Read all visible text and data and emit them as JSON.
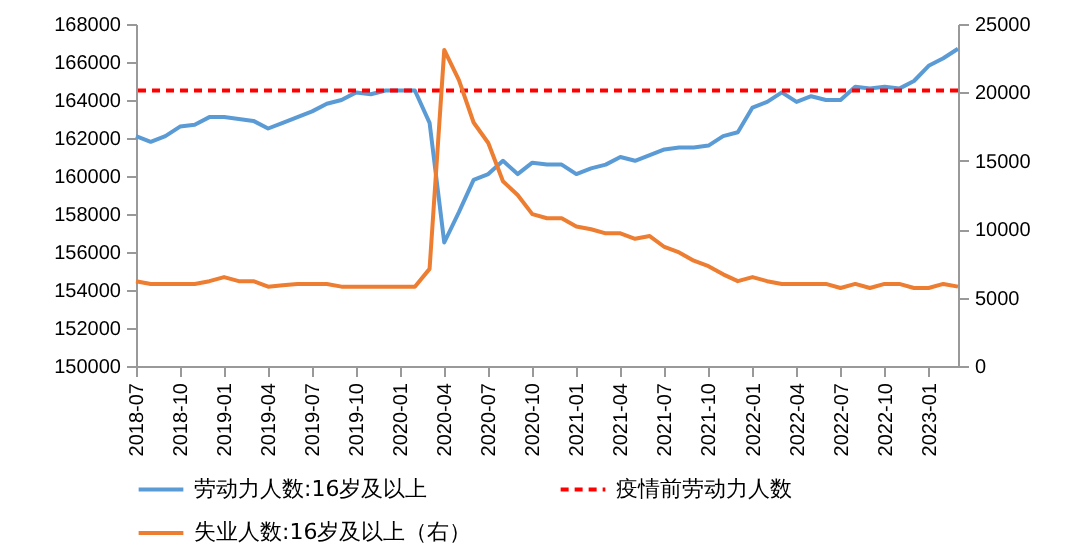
{
  "chart_data": {
    "type": "line",
    "categories": [
      "2018-07",
      null,
      null,
      "2018-10",
      null,
      null,
      "2019-01",
      null,
      null,
      "2019-04",
      null,
      null,
      "2019-07",
      null,
      null,
      "2019-10",
      null,
      null,
      "2020-01",
      null,
      null,
      "2020-04",
      null,
      null,
      "2020-07",
      null,
      null,
      "2020-10",
      null,
      null,
      "2021-01",
      null,
      null,
      "2021-04",
      null,
      null,
      "2021-07",
      null,
      null,
      "2021-10",
      null,
      null,
      "2022-01",
      null,
      null,
      "2022-04",
      null,
      null,
      "2022-07",
      null,
      null,
      "2022-10",
      null,
      null,
      "2023-01",
      null,
      null
    ],
    "series": [
      {
        "name": "劳动力人数:16岁及以上",
        "color": "#5b9bd5",
        "line_style": "solid",
        "values": [
          162100,
          161800,
          162100,
          162600,
          162700,
          163100,
          163100,
          163000,
          162900,
          162500,
          162800,
          163100,
          163400,
          163800,
          164000,
          164400,
          164300,
          164500,
          164500,
          164500,
          162800,
          156500,
          158100,
          159800,
          160100,
          160800,
          160100,
          160700,
          160600,
          160600,
          160100,
          160400,
          160600,
          161000,
          160800,
          161100,
          161400,
          161500,
          161500,
          161600,
          162100,
          162300,
          163600,
          163900,
          164400,
          163900,
          164200,
          164000,
          164000,
          164700,
          164600,
          164700,
          164600,
          165000,
          165800,
          166200,
          166700
        ]
      },
      {
        "name": "失业人数:16岁及以上（右）",
        "color": "#ed7d31",
        "axis": "y2",
        "line_style": "solid",
        "values": [
          6200,
          6000,
          6000,
          6000,
          6000,
          6200,
          6500,
          6200,
          6200,
          5800,
          5900,
          6000,
          6000,
          6000,
          5800,
          5800,
          5800,
          5800,
          5800,
          5800,
          7100,
          23100,
          20900,
          17800,
          16300,
          13500,
          12500,
          11100,
          10800,
          10800,
          10200,
          10000,
          9700,
          9700,
          9300,
          9500,
          8700,
          8300,
          7700,
          7300,
          6700,
          6200,
          6500,
          6200,
          6000,
          6000,
          6000,
          6000,
          5700,
          6000,
          5700,
          6000,
          6000,
          5700,
          5700,
          6000,
          5800
        ]
      }
    ],
    "ylim": [
      150000,
      168000
    ],
    "yticks": [
      150000,
      152000,
      154000,
      156000,
      158000,
      160000,
      162000,
      164000,
      166000,
      168000
    ],
    "y2lim": [
      0,
      25000
    ],
    "y2ticks": [
      0,
      5000,
      10000,
      15000,
      20000,
      25000
    ],
    "ref_lines": [
      {
        "axis": "y",
        "value": 164500,
        "label": "疫情前劳动力人数",
        "color": "#ff0000",
        "line_style": "dashed"
      }
    ],
    "legend": "bottom",
    "grid": false
  }
}
